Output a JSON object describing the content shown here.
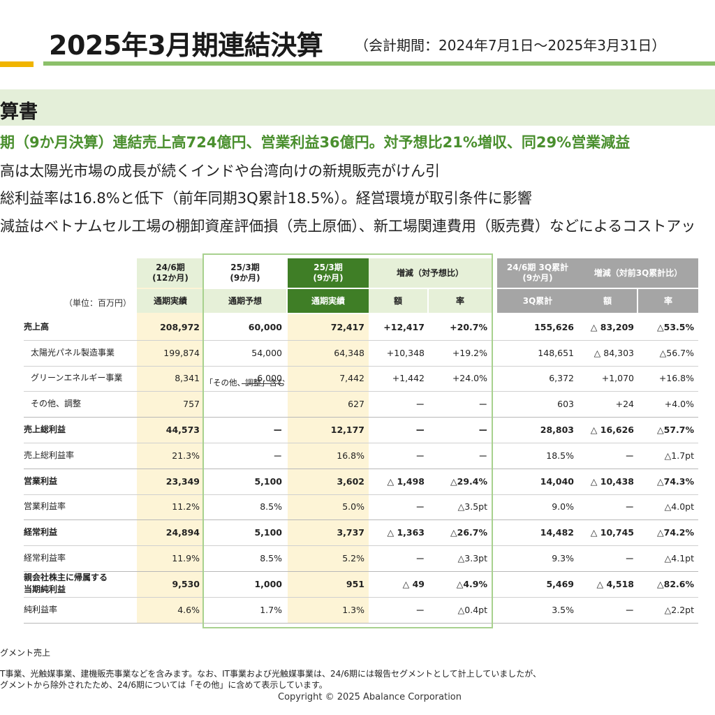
{
  "header": {
    "title": "2025年3月期連結決算",
    "period": "（会計期間：2024年7月1日～2025年3月31日）"
  },
  "section": {
    "title": "算書",
    "headline": "期（9か月決算）連結売上高724億円、営業利益36億円。対予想比21%増収、同29%営業減益",
    "bullets": [
      "高は太陽光市場の成長が続くインドや台湾向けの新規販売がけん引",
      "総利益率は16.8%と低下（前年同期3Q累計18.5%）。経営環境が取引条件に影響",
      "減益はベトナムセル工場の棚卸資産評価損（売上原価）、新工場関連費用（販売費）などによるコストアッ"
    ]
  },
  "table": {
    "unit": "（単位：百万円）",
    "headers": {
      "col1_top": "24/6期\n(12か月)",
      "col1_sub": "通期実績",
      "col2_top": "25/3期\n(9か月)",
      "col2_sub": "通期予想",
      "col3_top": "25/3期\n(9か月)",
      "col3_sub": "通期実績",
      "col45_top": "増減（対予想比）",
      "col4_sub": "額",
      "col5_sub": "率",
      "col6_top": "24/6期 3Q累計\n(9か月)",
      "col6_sub": "3Q累計",
      "col78_top": "増減（対前3Q累計比）",
      "col7_sub": "額",
      "col8_sub": "率"
    },
    "rows": [
      {
        "label": "売上高",
        "bold": true,
        "indent": false,
        "values": [
          "208,972",
          "60,000",
          "72,417",
          "+12,417",
          "+20.7%",
          "155,626",
          "△ 83,209",
          "△53.5%"
        ]
      },
      {
        "label": "太陽光パネル製造事業",
        "bold": false,
        "indent": true,
        "values": [
          "199,874",
          "54,000",
          "64,348",
          "+10,348",
          "+19.2%",
          "148,651",
          "△ 84,303",
          "△56.7%"
        ]
      },
      {
        "label": "グリーンエネルギー事業",
        "bold": false,
        "indent": true,
        "values": [
          "8,341",
          "6,000",
          "7,442",
          "+1,442",
          "+24.0%",
          "6,372",
          "+1,070",
          "+16.8%"
        ]
      },
      {
        "label": "その他、調整",
        "bold": false,
        "indent": true,
        "values": [
          "757",
          "",
          "627",
          "ー",
          "ー",
          "603",
          "+24",
          "+4.0%"
        ]
      },
      {
        "label": "売上総利益",
        "bold": true,
        "indent": false,
        "values": [
          "44,573",
          "ー",
          "12,177",
          "ー",
          "ー",
          "28,803",
          "△ 16,626",
          "△57.7%"
        ]
      },
      {
        "label": "売上総利益率",
        "bold": false,
        "indent": false,
        "values": [
          "21.3%",
          "ー",
          "16.8%",
          "ー",
          "ー",
          "18.5%",
          "ー",
          "△1.7pt"
        ]
      },
      {
        "label": "営業利益",
        "bold": true,
        "indent": false,
        "values": [
          "23,349",
          "5,100",
          "3,602",
          "△ 1,498",
          "△29.4%",
          "14,040",
          "△ 10,438",
          "△74.3%"
        ]
      },
      {
        "label": "営業利益率",
        "bold": false,
        "indent": false,
        "values": [
          "11.2%",
          "8.5%",
          "5.0%",
          "ー",
          "△3.5pt",
          "9.0%",
          "ー",
          "△4.0pt"
        ]
      },
      {
        "label": "経常利益",
        "bold": true,
        "indent": false,
        "values": [
          "24,894",
          "5,100",
          "3,737",
          "△ 1,363",
          "△26.7%",
          "14,482",
          "△ 10,745",
          "△74.2%"
        ]
      },
      {
        "label": "経常利益率",
        "bold": false,
        "indent": false,
        "values": [
          "11.9%",
          "8.5%",
          "5.2%",
          "ー",
          "△3.3pt",
          "9.3%",
          "ー",
          "△4.1pt"
        ]
      },
      {
        "label": "親会社株主に帰属する\n当期純利益",
        "bold": true,
        "indent": false,
        "values": [
          "9,530",
          "1,000",
          "951",
          "△ 49",
          "△4.9%",
          "5,469",
          "△ 4,518",
          "△82.6%"
        ]
      },
      {
        "label": "純利益率",
        "bold": false,
        "indent": false,
        "values": [
          "4.6%",
          "1.7%",
          "1.3%",
          "ー",
          "△0.4pt",
          "3.5%",
          "ー",
          "△2.2pt"
        ]
      }
    ],
    "note_in_cell": "「その他、調整」含む"
  },
  "footnotes": [
    "グメント売上",
    "T事業、光触媒事業、建機販売事業などを含みます。なお、IT事業および光触媒事業は、24/6期には報告セグメントとして計上していましたが、",
    "グメントから除外されたため、24/6期については「その他」に含めて表示しています。"
  ],
  "copyright": "Copyright © 2025 Abalance Corporation",
  "colors": {
    "accent_green": "#4a8f2e",
    "dark_green": "#3f7e26",
    "pale_yellow": "#fdf4d6",
    "gray_header": "#a5a5a5"
  }
}
